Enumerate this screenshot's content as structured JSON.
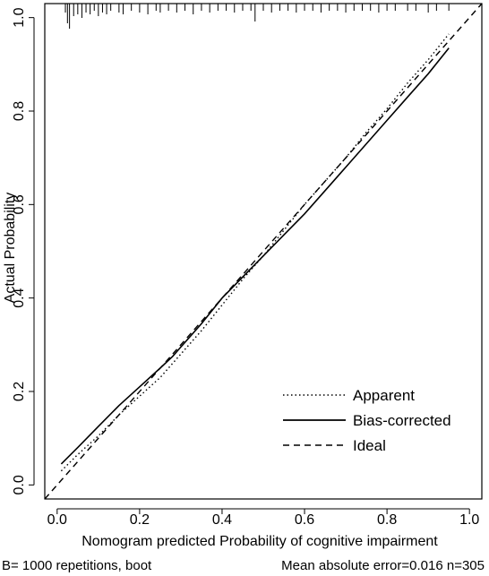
{
  "chart_data": {
    "type": "line",
    "xlabel": "Nomogram predicted Probability of cognitive impairment",
    "ylabel": "Actual Probability",
    "xlim": [
      -0.03,
      1.03
    ],
    "ylim": [
      -0.03,
      1.03
    ],
    "x_ticks": [
      0.0,
      0.2,
      0.4,
      0.6,
      0.8,
      1.0
    ],
    "x_tick_labels": [
      "0.0",
      "0.2",
      "0.4",
      "0.6",
      "0.8",
      "1.0"
    ],
    "y_ticks": [
      0.0,
      0.2,
      0.4,
      0.6,
      0.8,
      1.0
    ],
    "y_tick_labels": [
      "0.0",
      "0.2",
      "0.4",
      "0.6",
      "0.8",
      "1.0"
    ],
    "grid": false,
    "legend_position": "bottom-right",
    "series": [
      {
        "name": "Apparent",
        "style": "dotted",
        "x": [
          0.01,
          0.05,
          0.1,
          0.15,
          0.2,
          0.25,
          0.3,
          0.35,
          0.4,
          0.45,
          0.5,
          0.55,
          0.6,
          0.65,
          0.7,
          0.75,
          0.8,
          0.85,
          0.9,
          0.95
        ],
        "y": [
          0.03,
          0.065,
          0.105,
          0.15,
          0.19,
          0.23,
          0.28,
          0.33,
          0.385,
          0.44,
          0.49,
          0.545,
          0.6,
          0.65,
          0.7,
          0.755,
          0.805,
          0.86,
          0.91,
          0.965
        ]
      },
      {
        "name": "Bias-corrected",
        "style": "solid",
        "x": [
          0.01,
          0.05,
          0.1,
          0.15,
          0.2,
          0.25,
          0.28,
          0.3,
          0.35,
          0.4,
          0.45,
          0.5,
          0.55,
          0.6,
          0.65,
          0.7,
          0.75,
          0.8,
          0.85,
          0.9,
          0.95
        ],
        "y": [
          0.045,
          0.08,
          0.125,
          0.17,
          0.21,
          0.25,
          0.275,
          0.295,
          0.345,
          0.4,
          0.445,
          0.49,
          0.535,
          0.58,
          0.63,
          0.68,
          0.73,
          0.78,
          0.83,
          0.88,
          0.935
        ]
      },
      {
        "name": "Ideal",
        "style": "dashed",
        "x": [
          -0.03,
          1.03
        ],
        "y": [
          -0.03,
          1.03
        ]
      }
    ],
    "rug_x": [
      0.02,
      0.025,
      0.03,
      0.04,
      0.05,
      0.06,
      0.07,
      0.08,
      0.09,
      0.1,
      0.11,
      0.12,
      0.13,
      0.15,
      0.16,
      0.18,
      0.2,
      0.22,
      0.24,
      0.25,
      0.27,
      0.29,
      0.31,
      0.33,
      0.35,
      0.37,
      0.39,
      0.41,
      0.43,
      0.45,
      0.47,
      0.48,
      0.5,
      0.52,
      0.54,
      0.56,
      0.58,
      0.6,
      0.62,
      0.64,
      0.66,
      0.68,
      0.7,
      0.72,
      0.74,
      0.76,
      0.78,
      0.8,
      0.82,
      0.85,
      0.87,
      0.9,
      0.92,
      0.95
    ],
    "rug_heights": [
      10,
      22,
      28,
      14,
      12,
      16,
      10,
      12,
      8,
      14,
      10,
      12,
      8,
      10,
      12,
      8,
      10,
      12,
      8,
      10,
      8,
      10,
      8,
      12,
      8,
      10,
      8,
      8,
      10,
      8,
      8,
      20,
      8,
      10,
      8,
      8,
      10,
      8,
      8,
      10,
      8,
      8,
      10,
      8,
      8,
      8,
      10,
      8,
      8,
      8,
      8,
      10,
      8,
      8
    ],
    "footer_left": "B= 1000 repetitions, boot",
    "footer_right": "Mean absolute error=0.016 n=305"
  }
}
